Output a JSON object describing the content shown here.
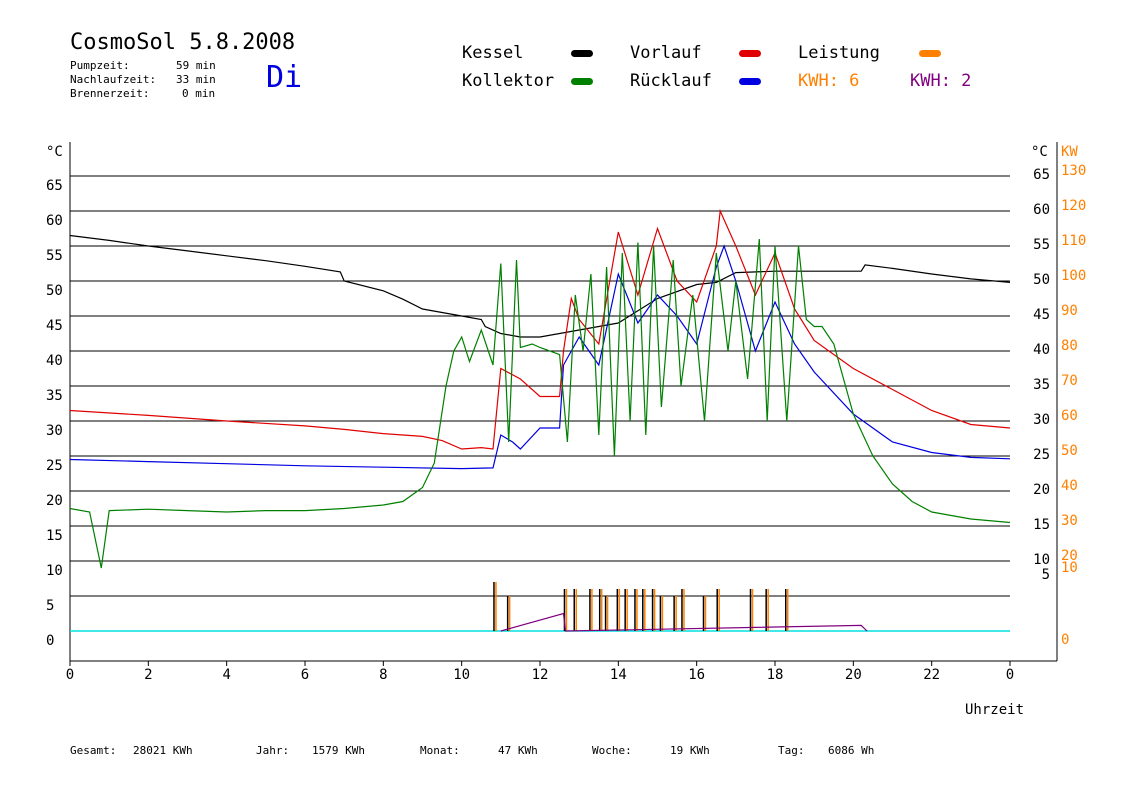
{
  "header": {
    "title": "CosmoSol 5.8.2008",
    "day": "Di",
    "info": [
      {
        "label": "Pumpzeit:",
        "value": "59 min"
      },
      {
        "label": "Nachlaufzeit:",
        "value": "33 min"
      },
      {
        "label": "Brennerzeit:",
        "value": "0 min"
      }
    ]
  },
  "legend": {
    "kessel": {
      "label": "Kessel",
      "color": "#000000"
    },
    "kollektor": {
      "label": "Kollektor",
      "color": "#008000"
    },
    "vorlauf": {
      "label": "Vorlauf",
      "color": "#e00000"
    },
    "ruecklauf": {
      "label": "Rücklauf",
      "color": "#0000e0"
    },
    "leistung": {
      "label": "Leistung",
      "color": "#ff8000"
    },
    "kwh1": {
      "label": "KWH: 6",
      "color": "#ff8000"
    },
    "kwh2": {
      "label": "KWH: 2",
      "color": "#800080"
    }
  },
  "footer": [
    {
      "label": "Gesamt:",
      "value": "28021 KWh"
    },
    {
      "label": "Jahr:",
      "value": "1579 KWh"
    },
    {
      "label": "Monat:",
      "value": "47 KWh"
    },
    {
      "label": "Woche:",
      "value": "19 KWh"
    },
    {
      "label": "Tag:",
      "value": "6086 Wh"
    }
  ],
  "chart_data": {
    "type": "line",
    "xlabel": "Uhrzeit",
    "x_ticks": [
      "0",
      "2",
      "4",
      "6",
      "8",
      "10",
      "12",
      "14",
      "16",
      "18",
      "20",
      "22",
      "0"
    ],
    "x_range": [
      0,
      24
    ],
    "y_left_unit": "°C",
    "y_left_ticks": [
      0,
      5,
      10,
      15,
      20,
      25,
      30,
      35,
      40,
      45,
      50,
      55,
      60,
      65
    ],
    "y_right_unit_c": "°C",
    "y_right_ticks_c": [
      5,
      10,
      15,
      20,
      25,
      30,
      35,
      40,
      45,
      50,
      55,
      60,
      65
    ],
    "y_right_unit_kw": "KW",
    "y_right_ticks_kw": [
      0,
      10,
      20,
      30,
      40,
      50,
      60,
      70,
      80,
      90,
      100,
      110,
      120,
      130
    ],
    "ylim": [
      0,
      70
    ],
    "series": [
      {
        "name": "Kessel",
        "color": "#000000",
        "points": [
          [
            0,
            56.5
          ],
          [
            1,
            55.8
          ],
          [
            2,
            55.0
          ],
          [
            3,
            54.3
          ],
          [
            4,
            53.6
          ],
          [
            5,
            52.9
          ],
          [
            6,
            52.1
          ],
          [
            6.9,
            51.3
          ],
          [
            7,
            50.0
          ],
          [
            8,
            48.6
          ],
          [
            8.5,
            47.4
          ],
          [
            9,
            46.0
          ],
          [
            10,
            45.0
          ],
          [
            10.5,
            44.5
          ],
          [
            10.6,
            43.5
          ],
          [
            11,
            42.5
          ],
          [
            11.5,
            42.0
          ],
          [
            12,
            42.0
          ],
          [
            12.5,
            42.5
          ],
          [
            13,
            43.0
          ],
          [
            14,
            44.0
          ],
          [
            15,
            47.5
          ],
          [
            16,
            49.5
          ],
          [
            16.5,
            49.8
          ],
          [
            17,
            51.2
          ],
          [
            18,
            51.4
          ],
          [
            19,
            51.4
          ],
          [
            20,
            51.4
          ],
          [
            20.2,
            51.4
          ],
          [
            20.3,
            52.3
          ],
          [
            21,
            51.8
          ],
          [
            22,
            51.0
          ],
          [
            23,
            50.3
          ],
          [
            24,
            49.8
          ]
        ]
      },
      {
        "name": "Vorlauf",
        "color": "#e00000",
        "points": [
          [
            0,
            31.5
          ],
          [
            2,
            30.8
          ],
          [
            4,
            30.0
          ],
          [
            6,
            29.3
          ],
          [
            7,
            28.8
          ],
          [
            8,
            28.2
          ],
          [
            9,
            27.8
          ],
          [
            9.5,
            27.2
          ],
          [
            10,
            26.0
          ],
          [
            10.5,
            26.2
          ],
          [
            10.8,
            26.0
          ],
          [
            11,
            37.5
          ],
          [
            11.5,
            36.0
          ],
          [
            12,
            33.5
          ],
          [
            12.5,
            33.5
          ],
          [
            12.6,
            40.0
          ],
          [
            12.8,
            47.5
          ],
          [
            13,
            44.5
          ],
          [
            13.5,
            41.0
          ],
          [
            14,
            57.0
          ],
          [
            14.5,
            48.0
          ],
          [
            15,
            57.5
          ],
          [
            15.5,
            50.0
          ],
          [
            16,
            47.0
          ],
          [
            16.5,
            55.0
          ],
          [
            16.6,
            60.0
          ],
          [
            17,
            55.0
          ],
          [
            17.5,
            48.0
          ],
          [
            18,
            54.0
          ],
          [
            18.5,
            46.0
          ],
          [
            19,
            41.5
          ],
          [
            20,
            37.5
          ],
          [
            21,
            34.5
          ],
          [
            22,
            31.5
          ],
          [
            23,
            29.5
          ],
          [
            24,
            29.0
          ]
        ]
      },
      {
        "name": "Rücklauf",
        "color": "#0000e0",
        "points": [
          [
            0,
            24.5
          ],
          [
            2,
            24.2
          ],
          [
            4,
            23.9
          ],
          [
            6,
            23.6
          ],
          [
            8,
            23.4
          ],
          [
            10,
            23.2
          ],
          [
            10.8,
            23.3
          ],
          [
            11,
            28.0
          ],
          [
            11.3,
            27.0
          ],
          [
            11.5,
            26.0
          ],
          [
            12,
            29.0
          ],
          [
            12.5,
            29.0
          ],
          [
            12.6,
            38.0
          ],
          [
            13,
            42.0
          ],
          [
            13.5,
            38.0
          ],
          [
            14,
            51.0
          ],
          [
            14.5,
            44.0
          ],
          [
            15,
            48.0
          ],
          [
            15.5,
            45.0
          ],
          [
            16,
            41.0
          ],
          [
            16.5,
            52.0
          ],
          [
            16.7,
            55.0
          ],
          [
            17,
            50.0
          ],
          [
            17.5,
            40.0
          ],
          [
            18,
            47.0
          ],
          [
            18.5,
            41.0
          ],
          [
            19,
            37.0
          ],
          [
            20,
            31.0
          ],
          [
            21,
            27.0
          ],
          [
            22,
            25.5
          ],
          [
            23,
            24.8
          ],
          [
            24,
            24.6
          ]
        ]
      },
      {
        "name": "Kollektor",
        "color": "#008000",
        "points": [
          [
            0,
            17.5
          ],
          [
            0.5,
            17.0
          ],
          [
            0.8,
            9.0
          ],
          [
            1,
            17.2
          ],
          [
            2,
            17.4
          ],
          [
            3,
            17.2
          ],
          [
            4,
            17.0
          ],
          [
            5,
            17.2
          ],
          [
            6,
            17.2
          ],
          [
            7,
            17.5
          ],
          [
            8,
            18.0
          ],
          [
            8.5,
            18.5
          ],
          [
            9,
            20.5
          ],
          [
            9.3,
            24.0
          ],
          [
            9.6,
            35.0
          ],
          [
            9.8,
            40.0
          ],
          [
            10,
            42.0
          ],
          [
            10.2,
            38.5
          ],
          [
            10.5,
            43.0
          ],
          [
            10.8,
            38.0
          ],
          [
            11,
            52.5
          ],
          [
            11.2,
            27.0
          ],
          [
            11.4,
            53.0
          ],
          [
            11.5,
            40.5
          ],
          [
            11.8,
            41.0
          ],
          [
            12,
            40.5
          ],
          [
            12.5,
            39.5
          ],
          [
            12.7,
            27.0
          ],
          [
            12.9,
            48.0
          ],
          [
            13.1,
            40.0
          ],
          [
            13.3,
            51.0
          ],
          [
            13.5,
            28.0
          ],
          [
            13.7,
            52.0
          ],
          [
            13.9,
            25.0
          ],
          [
            14.1,
            54.0
          ],
          [
            14.3,
            30.0
          ],
          [
            14.5,
            55.5
          ],
          [
            14.7,
            28.0
          ],
          [
            14.9,
            55.0
          ],
          [
            15.1,
            32.0
          ],
          [
            15.4,
            53.0
          ],
          [
            15.6,
            35.0
          ],
          [
            15.9,
            48.0
          ],
          [
            16.2,
            30.0
          ],
          [
            16.5,
            54.0
          ],
          [
            16.8,
            40.0
          ],
          [
            17,
            50.0
          ],
          [
            17.3,
            36.0
          ],
          [
            17.6,
            56.0
          ],
          [
            17.8,
            30.0
          ],
          [
            18,
            55.0
          ],
          [
            18.3,
            30.0
          ],
          [
            18.6,
            55.0
          ],
          [
            18.8,
            44.5
          ],
          [
            19,
            43.5
          ],
          [
            19.2,
            43.5
          ],
          [
            19.5,
            41.0
          ],
          [
            20,
            31.0
          ],
          [
            20.5,
            25.0
          ],
          [
            21,
            21.0
          ],
          [
            21.5,
            18.5
          ],
          [
            22,
            17.0
          ],
          [
            23,
            16.0
          ],
          [
            24,
            15.5
          ]
        ]
      }
    ],
    "power_bars": {
      "color_outline": "#000000",
      "color_fill": "#ff8000",
      "x": [
        10.85,
        11.2,
        12.65,
        12.9,
        13.3,
        13.55,
        13.7,
        14.0,
        14.2,
        14.45,
        14.65,
        14.9,
        15.1,
        15.45,
        15.65,
        16.2,
        16.55,
        17.4,
        17.8,
        18.3
      ],
      "kw": [
        14,
        10,
        12,
        12,
        12,
        12,
        10,
        12,
        12,
        12,
        12,
        12,
        10,
        10,
        12,
        10,
        12,
        12,
        12,
        12
      ]
    },
    "aux_purple_segments": [
      [
        11.0,
        0
      ],
      [
        12.6,
        2.5
      ],
      [
        12.65,
        0
      ],
      [
        20.2,
        0.8
      ],
      [
        20.35,
        0
      ]
    ],
    "baseline": {
      "color": "#00e0e0",
      "value": 0
    }
  }
}
